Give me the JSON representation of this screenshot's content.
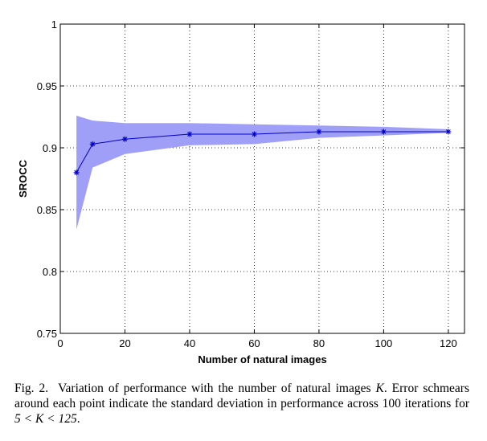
{
  "chart_data": {
    "type": "line",
    "xlabel": "Number of natural images",
    "ylabel": "SROCC",
    "xlim": [
      0,
      125
    ],
    "ylim": [
      0.75,
      1
    ],
    "x_ticks": [
      0,
      20,
      40,
      60,
      80,
      100,
      120
    ],
    "y_ticks": [
      0.75,
      0.8,
      0.85,
      0.9,
      0.95,
      1
    ],
    "x_tick_labels": [
      "0",
      "20",
      "40",
      "60",
      "80",
      "100",
      "120"
    ],
    "y_tick_labels": [
      "0.75",
      "0.8",
      "0.85",
      "0.9",
      "0.95",
      "1"
    ],
    "grid": true,
    "x": [
      5,
      10,
      20,
      40,
      60,
      80,
      100,
      120
    ],
    "series": [
      {
        "values": [
          0.88,
          0.903,
          0.907,
          0.911,
          0.911,
          0.913,
          0.913,
          0.913
        ],
        "std_upper": [
          0.926,
          0.922,
          0.92,
          0.92,
          0.919,
          0.918,
          0.917,
          0.915
        ],
        "std_lower": [
          0.834,
          0.884,
          0.895,
          0.902,
          0.903,
          0.908,
          0.91,
          0.912
        ],
        "color": "#0000cc",
        "band_color": "#9f9ff8",
        "marker": "asterisk"
      }
    ]
  },
  "caption": {
    "prefix": "Fig. 2.",
    "text_before_math": "Variation of performance with the number of natural images",
    "math_k": "K",
    "text_after_k": ". Error schmears around each point indicate the standard deviation in performance across 100 iterations for",
    "math_range": "5 < K < 125",
    "end": "."
  }
}
